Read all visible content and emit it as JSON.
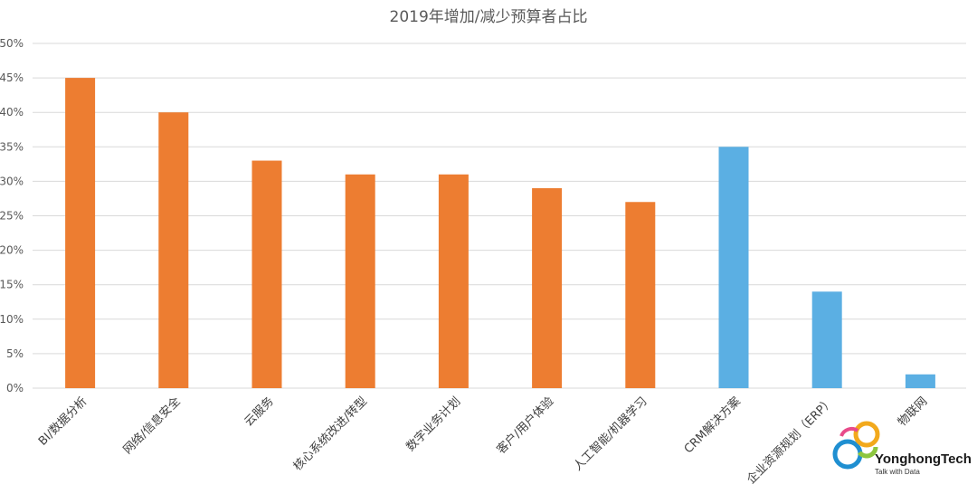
{
  "chart_data": {
    "type": "bar",
    "title": "2019年增加/减少预算者占比",
    "categories": [
      "BI/数据分析",
      "网络/信息安全",
      "云服务",
      "核心系统改进/转型",
      "数字业务计划",
      "客户/用户体验",
      "人工智能/机器学习",
      "CRM解决方案",
      "企业资源规划（ERP）",
      "物联网"
    ],
    "values": [
      45,
      40,
      33,
      31,
      31,
      29,
      27,
      35,
      14,
      2
    ],
    "bar_colors": [
      "#ED7D31",
      "#ED7D31",
      "#ED7D31",
      "#ED7D31",
      "#ED7D31",
      "#ED7D31",
      "#ED7D31",
      "#5BAFE3",
      "#5BAFE3",
      "#5BAFE3"
    ],
    "ylim": [
      0,
      50
    ],
    "yticks": [
      "0%",
      "5%",
      "10%",
      "15%",
      "20%",
      "25%",
      "30%",
      "35%",
      "40%",
      "45%",
      "50%"
    ],
    "grid": true,
    "xlabel": "",
    "ylabel": ""
  },
  "watermark": {
    "name": "YonghongTech",
    "tagline": "Talk with Data"
  }
}
